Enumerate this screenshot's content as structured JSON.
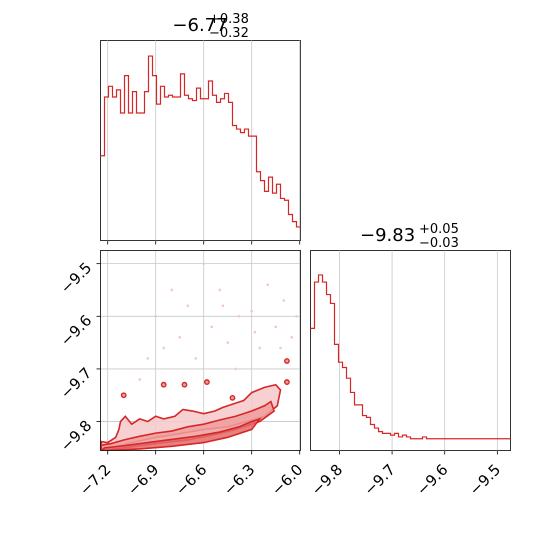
{
  "chart_data": [
    {
      "type": "histogram",
      "panel": "top-left",
      "title_main": "−6.77",
      "title_sup": "+0.38",
      "title_sub": "−0.32",
      "xlim": [
        -7.245,
        -5.995
      ],
      "ymax": 1.0,
      "grid": true,
      "color": "#d62728",
      "edges_start": -7.245,
      "bin_width": 0.025,
      "counts": [
        0.42,
        0.75,
        0.81,
        0.75,
        0.79,
        0.66,
        0.87,
        0.66,
        0.78,
        0.66,
        0.66,
        0.78,
        0.98,
        0.87,
        0.71,
        0.81,
        0.75,
        0.76,
        0.75,
        0.75,
        0.88,
        0.76,
        0.74,
        0.73,
        0.8,
        0.74,
        0.74,
        0.84,
        0.76,
        0.72,
        0.74,
        0.77,
        0.72,
        0.59,
        0.57,
        0.55,
        0.57,
        0.53,
        0.53,
        0.33,
        0.28,
        0.22,
        0.3,
        0.21,
        0.26,
        0.18,
        0.17,
        0.09,
        0.05,
        0.02
      ]
    },
    {
      "type": "histogram",
      "panel": "bottom-right",
      "title_main": "−9.83",
      "title_sup": "+0.05",
      "title_sub": "−0.03",
      "xlim": [
        -9.855,
        -9.475
      ],
      "ymax": 1.0,
      "grid": true,
      "color": "#d62728",
      "edges_start": -9.855,
      "bin_width": 0.0076,
      "counts": [
        0.63,
        0.89,
        0.93,
        0.89,
        0.82,
        0.77,
        0.54,
        0.44,
        0.41,
        0.35,
        0.27,
        0.2,
        0.2,
        0.14,
        0.13,
        0.09,
        0.07,
        0.05,
        0.04,
        0.04,
        0.03,
        0.04,
        0.02,
        0.03,
        0.02,
        0.01,
        0.01,
        0.01,
        0.02,
        0.01,
        0.01,
        0.01,
        0.01,
        0.01,
        0.01,
        0.01,
        0.01,
        0.01,
        0.01,
        0.01,
        0.01,
        0.01,
        0.01,
        0.01,
        0.01,
        0.01,
        0.01,
        0.01,
        0.01,
        0.01
      ]
    },
    {
      "type": "contour",
      "panel": "bottom-left",
      "xlim": [
        -7.245,
        -5.995
      ],
      "ylim": [
        -9.855,
        -9.475
      ],
      "grid": true,
      "color": "#d62728",
      "xticks": [
        -7.2,
        -6.9,
        -6.6,
        -6.3,
        -6.0
      ],
      "yticks": [
        -9.5,
        -9.6,
        -9.7,
        -9.8
      ],
      "xtick_labels": [
        "−7.2",
        "−6.9",
        "−6.6",
        "−6.3",
        "−6.0"
      ],
      "ytick_labels": [
        "−9.5",
        "−9.6",
        "−9.7",
        "−9.8"
      ],
      "contours": [
        [
          [
            -7.24,
            -9.855
          ],
          [
            -7.24,
            -9.838
          ],
          [
            -7.2,
            -9.84
          ],
          [
            -7.15,
            -9.83
          ],
          [
            -7.13,
            -9.815
          ],
          [
            -7.12,
            -9.8
          ],
          [
            -7.09,
            -9.79
          ],
          [
            -7.05,
            -9.805
          ],
          [
            -7.0,
            -9.795
          ],
          [
            -6.95,
            -9.8
          ],
          [
            -6.9,
            -9.79
          ],
          [
            -6.85,
            -9.795
          ],
          [
            -6.78,
            -9.79
          ],
          [
            -6.73,
            -9.777
          ],
          [
            -6.67,
            -9.78
          ],
          [
            -6.6,
            -9.785
          ],
          [
            -6.53,
            -9.78
          ],
          [
            -6.48,
            -9.773
          ],
          [
            -6.4,
            -9.765
          ],
          [
            -6.35,
            -9.76
          ],
          [
            -6.3,
            -9.745
          ],
          [
            -6.22,
            -9.735
          ],
          [
            -6.15,
            -9.73
          ],
          [
            -6.12,
            -9.74
          ],
          [
            -6.14,
            -9.77
          ],
          [
            -6.22,
            -9.79
          ],
          [
            -6.33,
            -9.8
          ],
          [
            -6.45,
            -9.81
          ],
          [
            -6.6,
            -9.815
          ],
          [
            -6.75,
            -9.823
          ],
          [
            -6.9,
            -9.83
          ],
          [
            -7.05,
            -9.84
          ],
          [
            -7.2,
            -9.852
          ],
          [
            -7.24,
            -9.855
          ]
        ],
        [
          [
            -7.24,
            -9.855
          ],
          [
            -7.24,
            -9.845
          ],
          [
            -7.18,
            -9.842
          ],
          [
            -7.1,
            -9.835
          ],
          [
            -7.0,
            -9.828
          ],
          [
            -6.9,
            -9.822
          ],
          [
            -6.8,
            -9.818
          ],
          [
            -6.7,
            -9.81
          ],
          [
            -6.6,
            -9.805
          ],
          [
            -6.5,
            -9.797
          ],
          [
            -6.4,
            -9.79
          ],
          [
            -6.3,
            -9.78
          ],
          [
            -6.22,
            -9.77
          ],
          [
            -6.18,
            -9.762
          ],
          [
            -6.16,
            -9.78
          ],
          [
            -6.25,
            -9.8
          ],
          [
            -6.4,
            -9.815
          ],
          [
            -6.55,
            -9.826
          ],
          [
            -6.7,
            -9.835
          ],
          [
            -6.85,
            -9.84
          ],
          [
            -7.0,
            -9.846
          ],
          [
            -7.15,
            -9.852
          ],
          [
            -7.24,
            -9.855
          ]
        ],
        [
          [
            -7.24,
            -9.855
          ],
          [
            -7.22,
            -9.85
          ],
          [
            -7.1,
            -9.846
          ],
          [
            -6.95,
            -9.84
          ],
          [
            -6.8,
            -9.834
          ],
          [
            -6.65,
            -9.828
          ],
          [
            -6.5,
            -9.82
          ],
          [
            -6.38,
            -9.81
          ],
          [
            -6.3,
            -9.8
          ],
          [
            -6.25,
            -9.795
          ],
          [
            -6.3,
            -9.815
          ],
          [
            -6.45,
            -9.83
          ],
          [
            -6.6,
            -9.84
          ],
          [
            -6.8,
            -9.847
          ],
          [
            -7.0,
            -9.852
          ],
          [
            -7.2,
            -9.855
          ]
        ]
      ],
      "islands": [
        [
          -6.85,
          -9.73
        ],
        [
          -6.72,
          -9.73
        ],
        [
          -6.58,
          -9.725
        ],
        [
          -6.42,
          -9.755
        ],
        [
          -6.08,
          -9.685
        ],
        [
          -6.08,
          -9.725
        ],
        [
          -7.1,
          -9.75
        ]
      ],
      "scatter": [
        [
          -6.9,
          -9.6
        ],
        [
          -6.75,
          -9.64
        ],
        [
          -6.7,
          -9.58
        ],
        [
          -6.55,
          -9.62
        ],
        [
          -6.5,
          -9.55
        ],
        [
          -6.45,
          -9.65
        ],
        [
          -6.38,
          -9.6
        ],
        [
          -6.3,
          -9.59
        ],
        [
          -6.25,
          -9.66
        ],
        [
          -6.2,
          -9.54
        ],
        [
          -6.15,
          -9.62
        ],
        [
          -6.1,
          -9.57
        ],
        [
          -6.05,
          -9.64
        ],
        [
          -6.02,
          -9.6
        ],
        [
          -6.6,
          -9.5
        ],
        [
          -6.8,
          -9.55
        ],
        [
          -6.95,
          -9.68
        ],
        [
          -7.0,
          -9.72
        ],
        [
          -6.65,
          -9.68
        ],
        [
          -6.4,
          -9.7
        ],
        [
          -6.12,
          -9.66
        ],
        [
          -6.28,
          -9.63
        ],
        [
          -6.48,
          -9.58
        ],
        [
          -6.85,
          -9.66
        ]
      ]
    }
  ]
}
